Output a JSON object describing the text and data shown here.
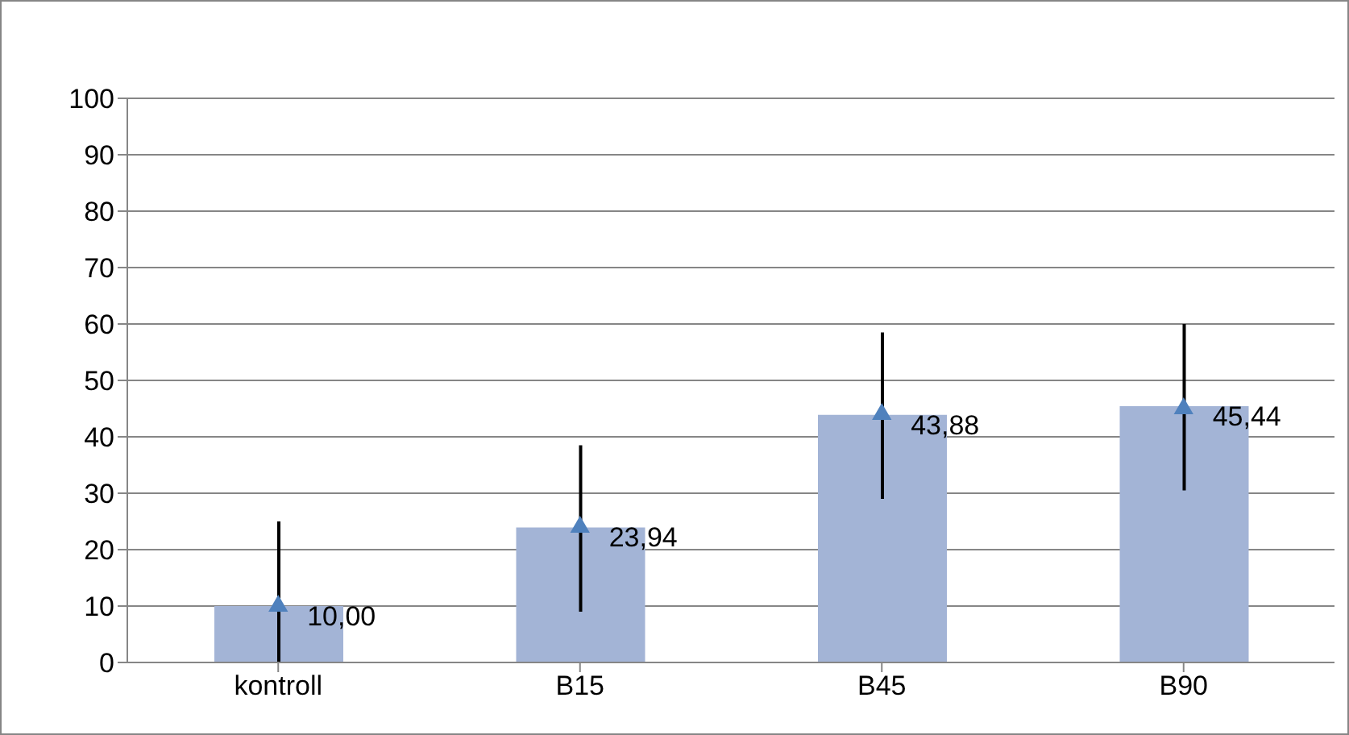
{
  "chart_data": {
    "type": "bar",
    "categories": [
      "kontroll",
      "B15",
      "B45",
      "B90"
    ],
    "series": [
      {
        "color": "#a3b4d6",
        "values": [
          10,
          23.94,
          43.88,
          45.44
        ],
        "errors": [
          [
            0,
            25
          ],
          [
            9,
            38.5
          ],
          [
            29,
            58.5
          ],
          [
            30.5,
            60
          ]
        ],
        "value_labels": [
          "10,00",
          "23,94",
          "43,88",
          "45,44"
        ]
      },
      {
        "type": "scatter",
        "color": "#4f81bd",
        "values": [
          10,
          24,
          44,
          45
        ]
      }
    ],
    "marker": "triangle",
    "ylim": [
      0,
      100
    ],
    "yticks": [
      0,
      10,
      20,
      30,
      40,
      50,
      60,
      70,
      80,
      90,
      100
    ],
    "grid": "y"
  }
}
